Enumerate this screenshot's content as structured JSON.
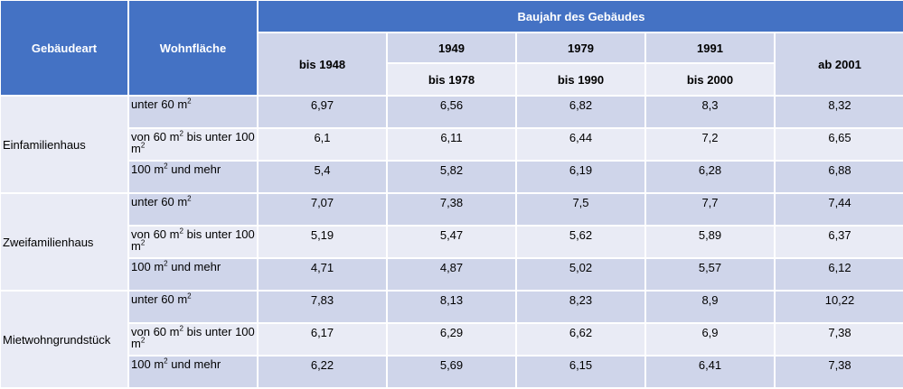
{
  "header": {
    "type_label": "Gebäudeart",
    "area_label": "Wohnfläche",
    "year_group_label": "Baujahr des Gebäudes",
    "periods": [
      {
        "top": "",
        "bottom": "bis 1948"
      },
      {
        "top": "1949",
        "bottom": "bis 1978"
      },
      {
        "top": "1979",
        "bottom": "bis 1990"
      },
      {
        "top": "1991",
        "bottom": "bis 2000"
      },
      {
        "top": "",
        "bottom": "ab 2001"
      }
    ]
  },
  "unit": "m",
  "unit_exponent": "2",
  "groups": [
    {
      "name": "Einfamilienhaus",
      "rows": [
        {
          "area": "unter 60",
          "values": [
            "6,97",
            "6,56",
            "6,82",
            "8,3",
            "8,32"
          ]
        },
        {
          "area": "von 60",
          "area_mid": "bis unter 100",
          "values": [
            "6,1",
            "6,11",
            "6,44",
            "7,2",
            "6,65"
          ]
        },
        {
          "area": "100",
          "area_suffix": "und mehr",
          "values": [
            "5,4",
            "5,82",
            "6,19",
            "6,28",
            "6,88"
          ]
        }
      ]
    },
    {
      "name": "Zweifamilienhaus",
      "rows": [
        {
          "area": "unter 60",
          "values": [
            "7,07",
            "7,38",
            "7,5",
            "7,7",
            "7,44"
          ]
        },
        {
          "area": "von 60",
          "area_mid": "bis unter 100",
          "values": [
            "5,19",
            "5,47",
            "5,62",
            "5,89",
            "6,37"
          ]
        },
        {
          "area": "100",
          "area_suffix": "und mehr",
          "values": [
            "4,71",
            "4,87",
            "5,02",
            "5,57",
            "6,12"
          ]
        }
      ]
    },
    {
      "name": "Mietwohngrundstück",
      "rows": [
        {
          "area": "unter 60",
          "values": [
            "7,83",
            "8,13",
            "8,23",
            "8,9",
            "10,22"
          ]
        },
        {
          "area": "von 60",
          "area_mid": "bis unter 100",
          "values": [
            "6,17",
            "6,29",
            "6,62",
            "6,9",
            "7,38"
          ]
        },
        {
          "area": "100",
          "area_suffix": "und mehr",
          "values": [
            "6,22",
            "5,69",
            "6,15",
            "6,41",
            "7,38"
          ]
        }
      ]
    }
  ]
}
